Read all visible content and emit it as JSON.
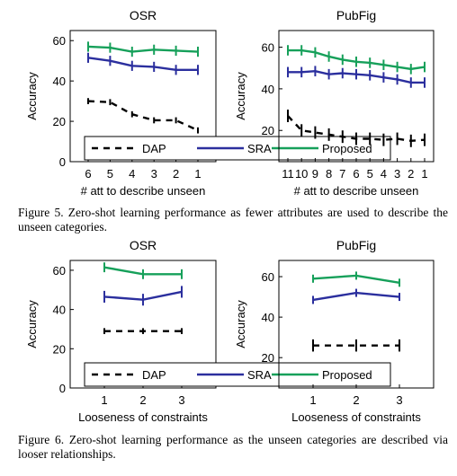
{
  "colors": {
    "dap": "#000000",
    "sra": "#2b2f9e",
    "proposed": "#16a05a"
  },
  "legend": {
    "dap": "DAP",
    "sra": "SRA",
    "proposed": "Proposed"
  },
  "captions": {
    "fig5": "Figure 5. Zero-shot learning performance as fewer attributes are used to describe the unseen categories.",
    "fig6": "Figure 6. Zero-shot learning performance as the unseen categories are described via looser relationships."
  },
  "chart_data": [
    {
      "type": "line",
      "title": "OSR",
      "xlabel": "# att to describe unseen",
      "ylabel": "Accuracy",
      "categories": [
        "6",
        "5",
        "4",
        "3",
        "2",
        "1"
      ],
      "ylim": [
        0,
        65
      ],
      "yticks": [
        0,
        20,
        40,
        60
      ],
      "series": [
        {
          "name": "DAP",
          "values": [
            30,
            29.5,
            23.5,
            20.5,
            20.5,
            15.5
          ],
          "err": [
            1.5,
            1.5,
            1.5,
            1.5,
            1.5,
            1.5
          ]
        },
        {
          "name": "SRA",
          "values": [
            51.5,
            50,
            47.5,
            47,
            45.5,
            45.5
          ],
          "err": [
            2.5,
            2.5,
            2.5,
            2.5,
            2.5,
            2.5
          ]
        },
        {
          "name": "Proposed",
          "values": [
            57,
            56.5,
            54.5,
            55.5,
            55,
            54.5
          ],
          "err": [
            2.5,
            2.5,
            2.5,
            2.5,
            2.5,
            2.5
          ]
        }
      ],
      "legend_position": "bottom"
    },
    {
      "type": "line",
      "title": "PubFig",
      "xlabel": "# att to describe unseen",
      "ylabel": "Accuracy",
      "categories": [
        "11",
        "10",
        "9",
        "8",
        "7",
        "6",
        "5",
        "4",
        "3",
        "2",
        "1"
      ],
      "ylim": [
        5,
        68
      ],
      "yticks": [
        20,
        40,
        60
      ],
      "series": [
        {
          "name": "DAP",
          "values": [
            27,
            20,
            19,
            18,
            17,
            16,
            16,
            15.5,
            16,
            15,
            15.5
          ],
          "err": [
            3,
            3,
            3,
            3,
            3,
            3,
            3,
            3,
            3,
            3,
            3
          ]
        },
        {
          "name": "SRA",
          "values": [
            48,
            48,
            48.5,
            47,
            47.5,
            47,
            46.5,
            45.5,
            44.5,
            43,
            43
          ],
          "err": [
            2.5,
            2.5,
            2.5,
            2.5,
            2.5,
            2.5,
            2.5,
            2.5,
            2.5,
            2.5,
            2.5
          ]
        },
        {
          "name": "Proposed",
          "values": [
            58.5,
            58.5,
            57.5,
            55.5,
            54,
            53,
            52.5,
            51.5,
            50.5,
            49.5,
            50.5
          ],
          "err": [
            2.5,
            2.5,
            2.5,
            2.5,
            2.5,
            2.5,
            2.5,
            2.5,
            2.5,
            2.5,
            2.5
          ]
        }
      ],
      "legend_position": "bottom"
    },
    {
      "type": "line",
      "title": "OSR",
      "xlabel": "Looseness of constraints",
      "ylabel": "Accuracy",
      "categories": [
        "1",
        "2",
        "3"
      ],
      "ylim": [
        0,
        65
      ],
      "yticks": [
        0,
        20,
        40,
        60
      ],
      "series": [
        {
          "name": "DAP",
          "values": [
            29,
            29,
            29
          ],
          "err": [
            1.5,
            1.5,
            1.5
          ]
        },
        {
          "name": "SRA",
          "values": [
            46.5,
            45,
            49
          ],
          "err": [
            3,
            3,
            3
          ]
        },
        {
          "name": "Proposed",
          "values": [
            61.5,
            58,
            58
          ],
          "err": [
            2.5,
            2.5,
            2.5
          ]
        }
      ],
      "legend_position": "bottom"
    },
    {
      "type": "line",
      "title": "PubFig",
      "xlabel": "Looseness of constraints",
      "ylabel": "Accuracy",
      "categories": [
        "1",
        "2",
        "3"
      ],
      "ylim": [
        5,
        68
      ],
      "yticks": [
        20,
        40,
        60
      ],
      "series": [
        {
          "name": "DAP",
          "values": [
            26,
            26,
            26
          ],
          "err": [
            3,
            3,
            3
          ]
        },
        {
          "name": "SRA",
          "values": [
            48.5,
            52,
            50
          ],
          "err": [
            2,
            2,
            2
          ]
        },
        {
          "name": "Proposed",
          "values": [
            59,
            60.5,
            57
          ],
          "err": [
            2,
            2,
            2
          ]
        }
      ],
      "legend_position": "bottom"
    }
  ]
}
